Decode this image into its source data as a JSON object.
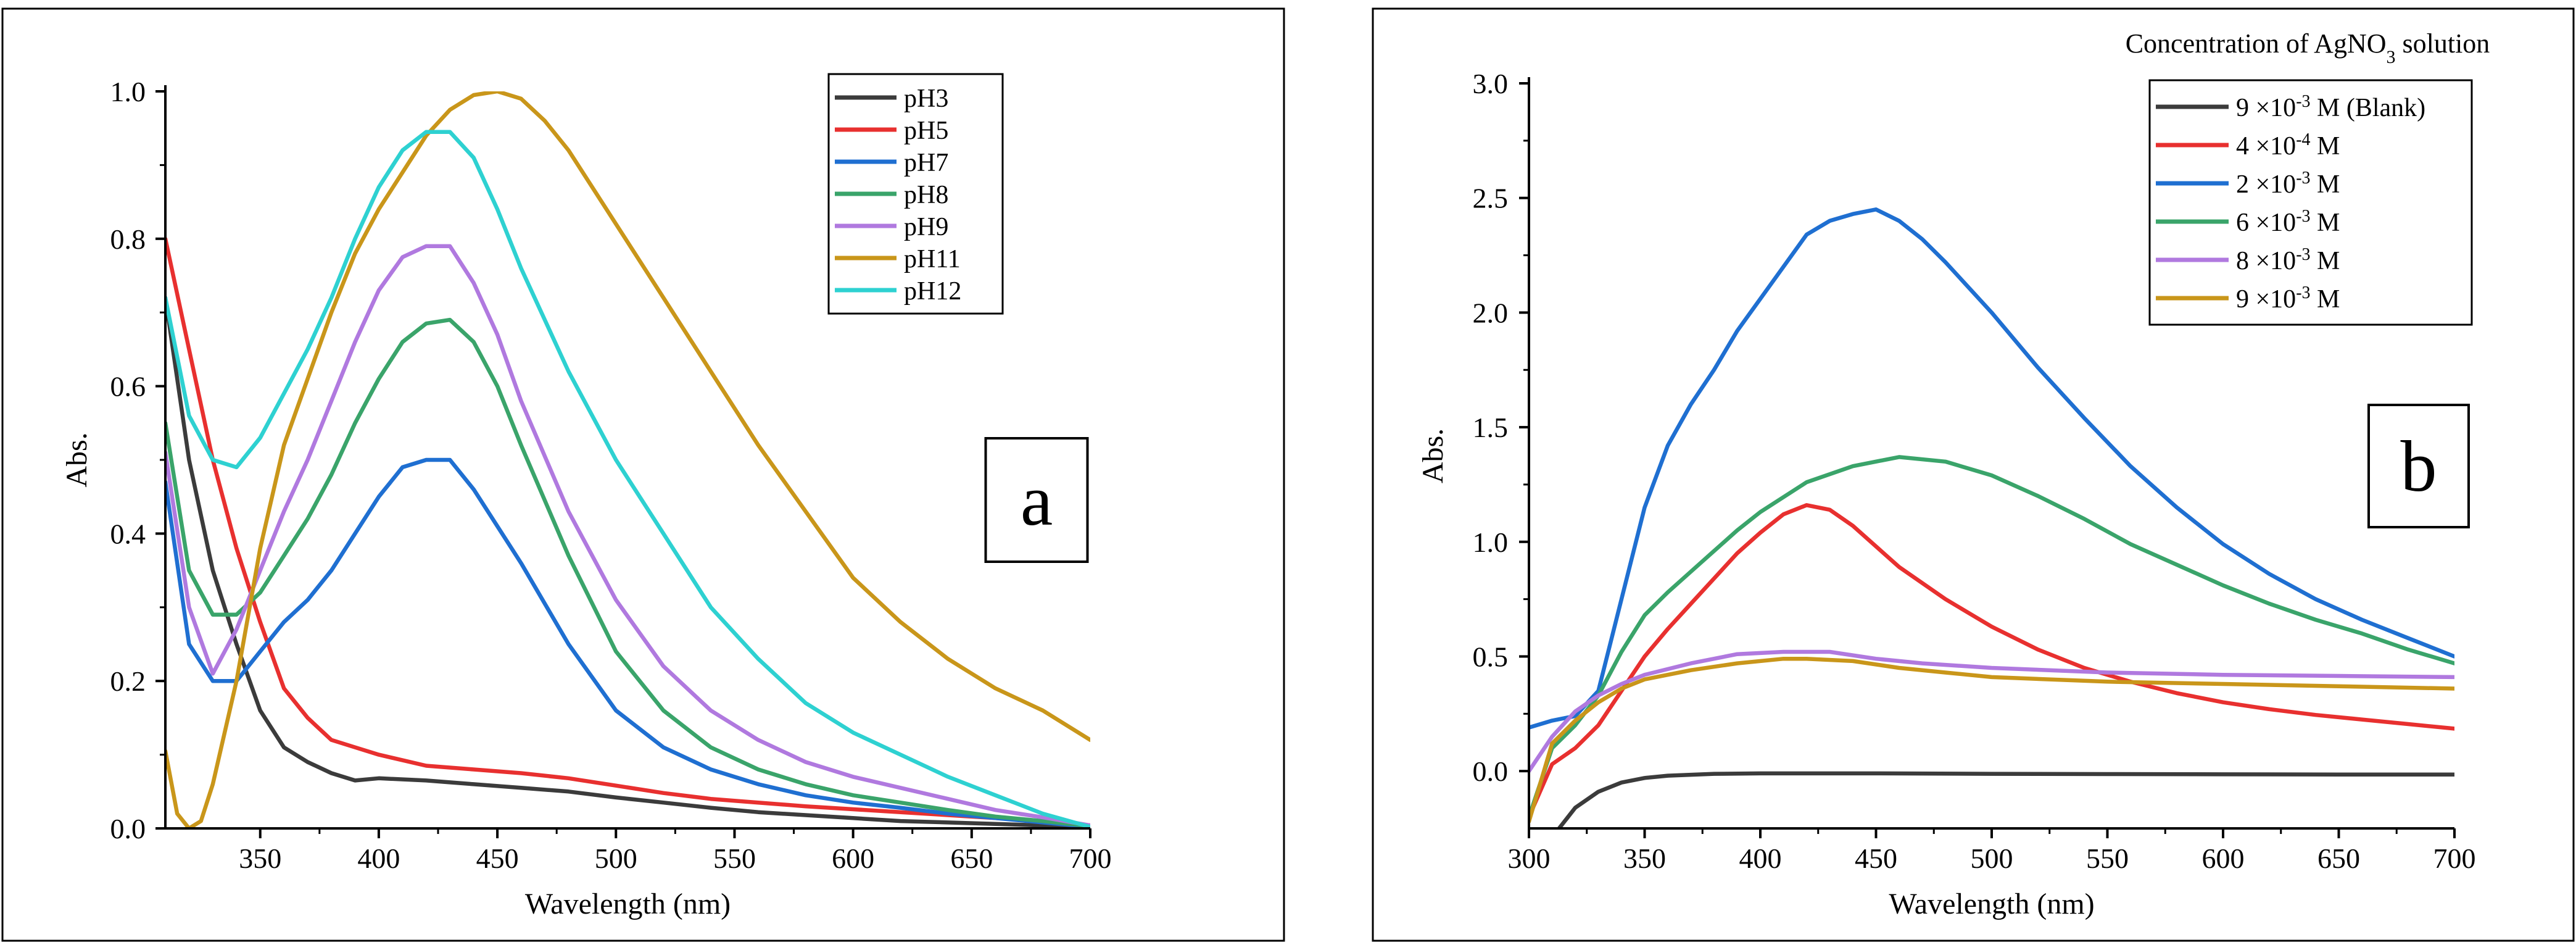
{
  "chart_data": [
    {
      "type": "line",
      "panel_label": "a",
      "xlabel": "Wavelength (nm)",
      "ylabel": "Abs.",
      "xlim": [
        310,
        700
      ],
      "ylim": [
        0.0,
        1.0
      ],
      "x_ticks": [
        350,
        400,
        450,
        500,
        550,
        600,
        650,
        700
      ],
      "x_tick_labels": [
        "350",
        "400",
        "450",
        "500",
        "550",
        "600",
        "650",
        "700"
      ],
      "y_ticks": [
        0.0,
        0.2,
        0.4,
        0.6,
        0.8,
        1.0
      ],
      "y_tick_labels": [
        "0.0",
        "0.2",
        "0.4",
        "0.6",
        "0.8",
        "1.0"
      ],
      "legend_title": "",
      "legend_position": "top-right",
      "series": [
        {
          "name": "pH3",
          "color": "#3b3b3b",
          "x": [
            310,
            320,
            330,
            340,
            350,
            360,
            370,
            380,
            390,
            400,
            420,
            440,
            460,
            480,
            500,
            520,
            540,
            560,
            580,
            600,
            620,
            640,
            660,
            680,
            700
          ],
          "y": [
            0.72,
            0.5,
            0.35,
            0.25,
            0.16,
            0.11,
            0.09,
            0.075,
            0.065,
            0.068,
            0.065,
            0.06,
            0.055,
            0.05,
            0.042,
            0.035,
            0.028,
            0.022,
            0.018,
            0.014,
            0.01,
            0.008,
            0.006,
            0.004,
            0.002
          ]
        },
        {
          "name": "pH5",
          "color": "#e8302f",
          "x": [
            310,
            320,
            330,
            340,
            350,
            360,
            370,
            380,
            390,
            400,
            420,
            440,
            460,
            480,
            500,
            520,
            540,
            560,
            580,
            600,
            620,
            640,
            660,
            680,
            700
          ],
          "y": [
            0.8,
            0.65,
            0.5,
            0.38,
            0.28,
            0.19,
            0.15,
            0.12,
            0.11,
            0.1,
            0.085,
            0.08,
            0.075,
            0.068,
            0.058,
            0.048,
            0.04,
            0.035,
            0.03,
            0.026,
            0.022,
            0.018,
            0.014,
            0.01,
            0.004
          ]
        },
        {
          "name": "pH7",
          "color": "#1f6fd1",
          "x": [
            310,
            320,
            330,
            340,
            350,
            360,
            370,
            380,
            390,
            400,
            410,
            420,
            430,
            440,
            460,
            480,
            500,
            520,
            540,
            560,
            580,
            600,
            620,
            640,
            660,
            680,
            700
          ],
          "y": [
            0.47,
            0.25,
            0.2,
            0.2,
            0.24,
            0.28,
            0.31,
            0.35,
            0.4,
            0.45,
            0.49,
            0.5,
            0.5,
            0.46,
            0.36,
            0.25,
            0.16,
            0.11,
            0.08,
            0.06,
            0.045,
            0.035,
            0.028,
            0.02,
            0.014,
            0.008,
            0.002
          ]
        },
        {
          "name": "pH8",
          "color": "#3aa46a",
          "x": [
            310,
            320,
            330,
            340,
            350,
            360,
            370,
            380,
            390,
            400,
            410,
            420,
            430,
            440,
            450,
            460,
            480,
            500,
            520,
            540,
            560,
            580,
            600,
            620,
            640,
            660,
            680,
            700
          ],
          "y": [
            0.55,
            0.35,
            0.29,
            0.29,
            0.32,
            0.37,
            0.42,
            0.48,
            0.55,
            0.61,
            0.66,
            0.685,
            0.69,
            0.66,
            0.6,
            0.52,
            0.37,
            0.24,
            0.16,
            0.11,
            0.08,
            0.06,
            0.045,
            0.035,
            0.025,
            0.016,
            0.01,
            0.003
          ]
        },
        {
          "name": "pH9",
          "color": "#b079df",
          "x": [
            310,
            320,
            330,
            340,
            350,
            360,
            370,
            380,
            390,
            400,
            410,
            420,
            430,
            440,
            450,
            460,
            480,
            500,
            520,
            540,
            560,
            580,
            600,
            620,
            640,
            660,
            680,
            700
          ],
          "y": [
            0.51,
            0.3,
            0.21,
            0.27,
            0.35,
            0.43,
            0.5,
            0.58,
            0.66,
            0.73,
            0.775,
            0.79,
            0.79,
            0.74,
            0.67,
            0.58,
            0.43,
            0.31,
            0.22,
            0.16,
            0.12,
            0.09,
            0.07,
            0.055,
            0.04,
            0.025,
            0.015,
            0.004
          ]
        },
        {
          "name": "pH11",
          "color": "#c9961a",
          "x": [
            310,
            315,
            320,
            325,
            330,
            340,
            350,
            360,
            370,
            380,
            390,
            400,
            410,
            420,
            430,
            440,
            450,
            460,
            470,
            480,
            500,
            520,
            540,
            560,
            580,
            600,
            620,
            640,
            660,
            680,
            700
          ],
          "y": [
            0.105,
            0.02,
            0.0,
            0.01,
            0.06,
            0.2,
            0.38,
            0.52,
            0.61,
            0.7,
            0.78,
            0.84,
            0.89,
            0.94,
            0.975,
            0.995,
            1.0,
            0.99,
            0.96,
            0.92,
            0.82,
            0.72,
            0.62,
            0.52,
            0.43,
            0.34,
            0.28,
            0.23,
            0.19,
            0.16,
            0.12
          ]
        },
        {
          "name": "pH12",
          "color": "#2ed1d1",
          "x": [
            310,
            320,
            330,
            340,
            350,
            360,
            370,
            380,
            390,
            400,
            410,
            420,
            430,
            440,
            450,
            460,
            480,
            500,
            520,
            540,
            560,
            580,
            600,
            620,
            640,
            660,
            680,
            700
          ],
          "y": [
            0.72,
            0.56,
            0.5,
            0.49,
            0.53,
            0.59,
            0.65,
            0.72,
            0.8,
            0.87,
            0.92,
            0.945,
            0.945,
            0.91,
            0.84,
            0.76,
            0.62,
            0.5,
            0.4,
            0.3,
            0.23,
            0.17,
            0.13,
            0.1,
            0.07,
            0.045,
            0.02,
            0.002
          ]
        }
      ]
    },
    {
      "type": "line",
      "panel_label": "b",
      "xlabel": "Wavelength (nm)",
      "ylabel": "Abs.",
      "xlim": [
        300,
        700
      ],
      "ylim": [
        -0.25,
        3.0
      ],
      "x_ticks": [
        300,
        350,
        400,
        450,
        500,
        550,
        600,
        650,
        700
      ],
      "x_tick_labels": [
        "300",
        "350",
        "400",
        "450",
        "500",
        "550",
        "600",
        "650",
        "700"
      ],
      "y_ticks": [
        0.0,
        0.5,
        1.0,
        1.5,
        2.0,
        2.5,
        3.0
      ],
      "y_tick_labels": [
        "0.0",
        "0.5",
        "1.0",
        "1.5",
        "2.0",
        "2.5",
        "3.0"
      ],
      "legend_title": "Concentration of AgNO3 solution",
      "legend_position": "top-right",
      "series": [
        {
          "name": "9 × 10-3 M (Blank)",
          "color": "#3b3b3b",
          "x": [
            313,
            320,
            330,
            340,
            350,
            360,
            380,
            400,
            450,
            500,
            550,
            600,
            650,
            700
          ],
          "y": [
            -0.25,
            -0.16,
            -0.09,
            -0.05,
            -0.03,
            -0.02,
            -0.012,
            -0.01,
            -0.01,
            -0.012,
            -0.013,
            -0.014,
            -0.015,
            -0.015
          ]
        },
        {
          "name": "4 × 10-4 M",
          "color": "#e8302f",
          "x": [
            300,
            310,
            320,
            330,
            340,
            350,
            360,
            370,
            380,
            390,
            400,
            410,
            420,
            430,
            440,
            450,
            460,
            480,
            500,
            520,
            540,
            560,
            580,
            600,
            620,
            640,
            660,
            680,
            700
          ],
          "y": [
            -0.2,
            0.03,
            0.1,
            0.2,
            0.35,
            0.5,
            0.62,
            0.73,
            0.84,
            0.95,
            1.04,
            1.12,
            1.16,
            1.14,
            1.07,
            0.98,
            0.89,
            0.75,
            0.63,
            0.53,
            0.45,
            0.39,
            0.34,
            0.3,
            0.27,
            0.245,
            0.225,
            0.205,
            0.185
          ]
        },
        {
          "name": "2 × 10-3 M",
          "color": "#1f6fd1",
          "x": [
            300,
            310,
            320,
            330,
            340,
            350,
            360,
            370,
            380,
            390,
            400,
            410,
            420,
            430,
            440,
            450,
            460,
            470,
            480,
            500,
            520,
            540,
            560,
            580,
            600,
            620,
            640,
            660,
            680,
            700
          ],
          "y": [
            0.19,
            0.22,
            0.24,
            0.35,
            0.75,
            1.15,
            1.42,
            1.6,
            1.75,
            1.92,
            2.06,
            2.2,
            2.34,
            2.4,
            2.43,
            2.45,
            2.4,
            2.32,
            2.22,
            2.0,
            1.76,
            1.54,
            1.33,
            1.15,
            0.99,
            0.86,
            0.75,
            0.66,
            0.58,
            0.5
          ]
        },
        {
          "name": "6 × 10-3 M",
          "color": "#3aa46a",
          "x": [
            300,
            310,
            320,
            330,
            340,
            350,
            360,
            370,
            380,
            390,
            400,
            420,
            440,
            460,
            480,
            500,
            520,
            540,
            560,
            580,
            600,
            620,
            640,
            660,
            680,
            700
          ],
          "y": [
            -0.2,
            0.1,
            0.2,
            0.33,
            0.52,
            0.68,
            0.78,
            0.87,
            0.96,
            1.05,
            1.13,
            1.26,
            1.33,
            1.37,
            1.35,
            1.29,
            1.2,
            1.1,
            0.99,
            0.9,
            0.81,
            0.73,
            0.66,
            0.6,
            0.53,
            0.47
          ]
        },
        {
          "name": "8 × 10-3 M",
          "color": "#b079df",
          "x": [
            300,
            310,
            320,
            330,
            340,
            350,
            370,
            390,
            410,
            430,
            450,
            470,
            500,
            550,
            600,
            650,
            700
          ],
          "y": [
            0.0,
            0.15,
            0.26,
            0.33,
            0.38,
            0.42,
            0.47,
            0.51,
            0.52,
            0.52,
            0.49,
            0.47,
            0.45,
            0.43,
            0.42,
            0.415,
            0.41
          ]
        },
        {
          "name": "9 × 10-3 M",
          "color": "#c9961a",
          "x": [
            300,
            310,
            320,
            330,
            340,
            350,
            370,
            390,
            410,
            420,
            440,
            460,
            480,
            500,
            550,
            600,
            650,
            700
          ],
          "y": [
            -0.22,
            0.12,
            0.22,
            0.3,
            0.36,
            0.4,
            0.44,
            0.47,
            0.49,
            0.49,
            0.48,
            0.45,
            0.43,
            0.41,
            0.39,
            0.38,
            0.37,
            0.36
          ]
        }
      ],
      "legend_labels": [
        {
          "mant": "9 ×10",
          "exp": "-3",
          "suffix": " M (Blank)"
        },
        {
          "mant": "4 ×10",
          "exp": "-4",
          "suffix": " M"
        },
        {
          "mant": "2 ×10",
          "exp": "-3",
          "suffix": " M"
        },
        {
          "mant": "6 ×10",
          "exp": "-3",
          "suffix": " M"
        },
        {
          "mant": "8 ×10",
          "exp": "-3",
          "suffix": " M"
        },
        {
          "mant": "9 ×10",
          "exp": "-3",
          "suffix": " M"
        }
      ],
      "legend_title_parts": {
        "pre": "Concentration of AgNO",
        "sub": "3",
        "post": " solution"
      }
    }
  ]
}
